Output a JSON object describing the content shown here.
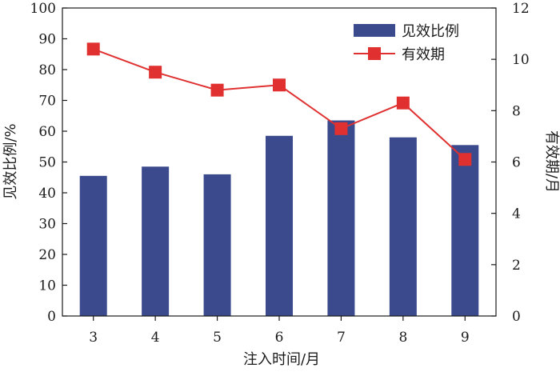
{
  "chart_data": {
    "type": "bar",
    "categories": [
      "3",
      "4",
      "5",
      "6",
      "7",
      "8",
      "9"
    ],
    "series": [
      {
        "name": "见效比例",
        "type": "bar",
        "axis": "left",
        "color": "#3a4a8c",
        "values": [
          45.5,
          48.5,
          46.0,
          58.5,
          63.5,
          58.0,
          55.5
        ]
      },
      {
        "name": "有效期",
        "type": "line",
        "axis": "right",
        "color": "#e03030",
        "values": [
          10.4,
          9.5,
          8.8,
          9.0,
          7.3,
          8.3,
          6.1
        ]
      }
    ],
    "xlabel": "注入时间/月",
    "ylabel": "见效比例/%",
    "y2label": "有效期/月",
    "ylim": [
      0,
      100
    ],
    "y2lim": [
      0,
      12
    ],
    "yticks": [
      "0",
      "10",
      "20",
      "30",
      "40",
      "50",
      "60",
      "70",
      "80",
      "90",
      "100"
    ],
    "y2ticks": [
      "0",
      "2",
      "4",
      "6",
      "8",
      "10",
      "12"
    ],
    "grid": false,
    "legend_position": "top-right"
  }
}
